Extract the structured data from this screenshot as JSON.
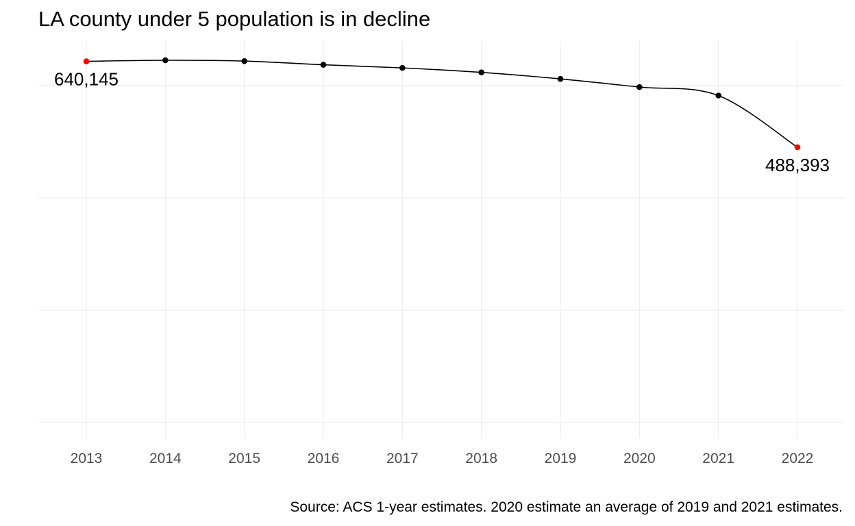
{
  "chart_data": {
    "type": "line",
    "title": "LA county under 5 population is in decline",
    "caption": "Source: ACS 1-year estimates. 2020 estimate an average of 2019 and 2021 estimates.",
    "xlabel": "",
    "ylabel": "",
    "x": [
      "2013",
      "2014",
      "2015",
      "2016",
      "2017",
      "2018",
      "2019",
      "2020",
      "2021",
      "2022"
    ],
    "values": [
      640145,
      642000,
      640600,
      634000,
      628500,
      620500,
      609000,
      594500,
      579500,
      488393
    ],
    "ylim": [
      0,
      660000
    ],
    "y_axis_labels_shown": false,
    "grid": true,
    "highlight": [
      {
        "x": "2013",
        "value": 640145,
        "label": "640,145"
      },
      {
        "x": "2022",
        "value": 488393,
        "label": "488,393"
      }
    ],
    "colors": {
      "line": "#000000",
      "point": "#000000",
      "highlight": "#ff0000",
      "grid": "#ebebeb",
      "tick_text": "#4d4d4d"
    }
  }
}
